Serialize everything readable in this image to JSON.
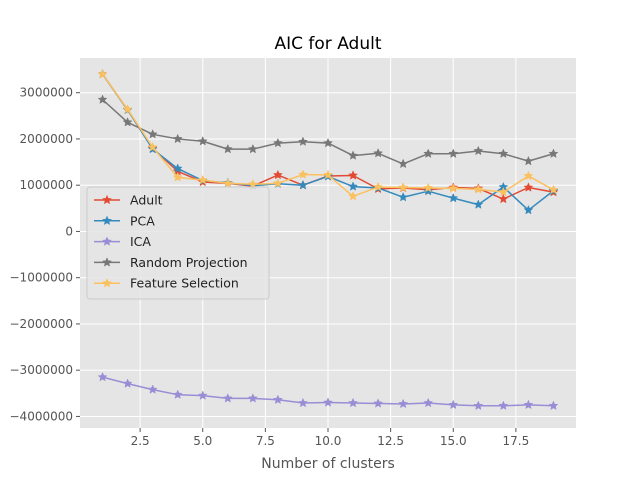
{
  "chart_data": {
    "type": "line",
    "title": "AIC for Adult",
    "xlabel": "Number of clusters",
    "ylabel": "",
    "xlim": [
      0.1,
      19.9
    ],
    "ylim": [
      -4250000,
      3750000
    ],
    "xticks": [
      2.5,
      5.0,
      7.5,
      10.0,
      12.5,
      15.0,
      17.5
    ],
    "xtick_labels": [
      "2.5",
      "5.0",
      "7.5",
      "10.0",
      "12.5",
      "15.0",
      "17.5"
    ],
    "yticks": [
      -4000000,
      -3000000,
      -2000000,
      -1000000,
      0,
      1000000,
      2000000,
      3000000
    ],
    "ytick_labels": [
      "−4000000",
      "−3000000",
      "−2000000",
      "−1000000",
      "0",
      "1000000",
      "2000000",
      "3000000"
    ],
    "grid": true,
    "legend_position": "center-left",
    "x": [
      1,
      2,
      3,
      4,
      5,
      6,
      7,
      8,
      9,
      10,
      11,
      12,
      13,
      14,
      15,
      16,
      17,
      18,
      19
    ],
    "series": [
      {
        "name": "Adult",
        "color": "#e24a33",
        "values": [
          3400000,
          2630000,
          1800000,
          1300000,
          1070000,
          1040000,
          980000,
          1220000,
          1000000,
          1200000,
          1210000,
          920000,
          940000,
          900000,
          950000,
          930000,
          700000,
          950000,
          850000
        ]
      },
      {
        "name": "PCA",
        "color": "#348abd",
        "values": [
          3400000,
          2630000,
          1780000,
          1360000,
          1100000,
          1050000,
          990000,
          1030000,
          1000000,
          1190000,
          970000,
          940000,
          740000,
          870000,
          720000,
          580000,
          960000,
          460000,
          880000
        ]
      },
      {
        "name": "ICA",
        "color": "#988ed5",
        "values": [
          -3150000,
          -3290000,
          -3420000,
          -3530000,
          -3550000,
          -3610000,
          -3610000,
          -3640000,
          -3710000,
          -3700000,
          -3710000,
          -3720000,
          -3730000,
          -3710000,
          -3750000,
          -3770000,
          -3770000,
          -3750000,
          -3770000
        ]
      },
      {
        "name": "Random Projection",
        "color": "#777777",
        "values": [
          2850000,
          2360000,
          2100000,
          2000000,
          1950000,
          1780000,
          1780000,
          1910000,
          1940000,
          1910000,
          1640000,
          1690000,
          1460000,
          1680000,
          1680000,
          1740000,
          1680000,
          1520000,
          1680000
        ]
      },
      {
        "name": "Feature Selection",
        "color": "#fbc15e",
        "values": [
          3400000,
          2640000,
          1820000,
          1170000,
          1110000,
          1040000,
          1020000,
          1040000,
          1230000,
          1220000,
          760000,
          960000,
          950000,
          940000,
          930000,
          910000,
          850000,
          1200000,
          900000
        ]
      }
    ]
  }
}
